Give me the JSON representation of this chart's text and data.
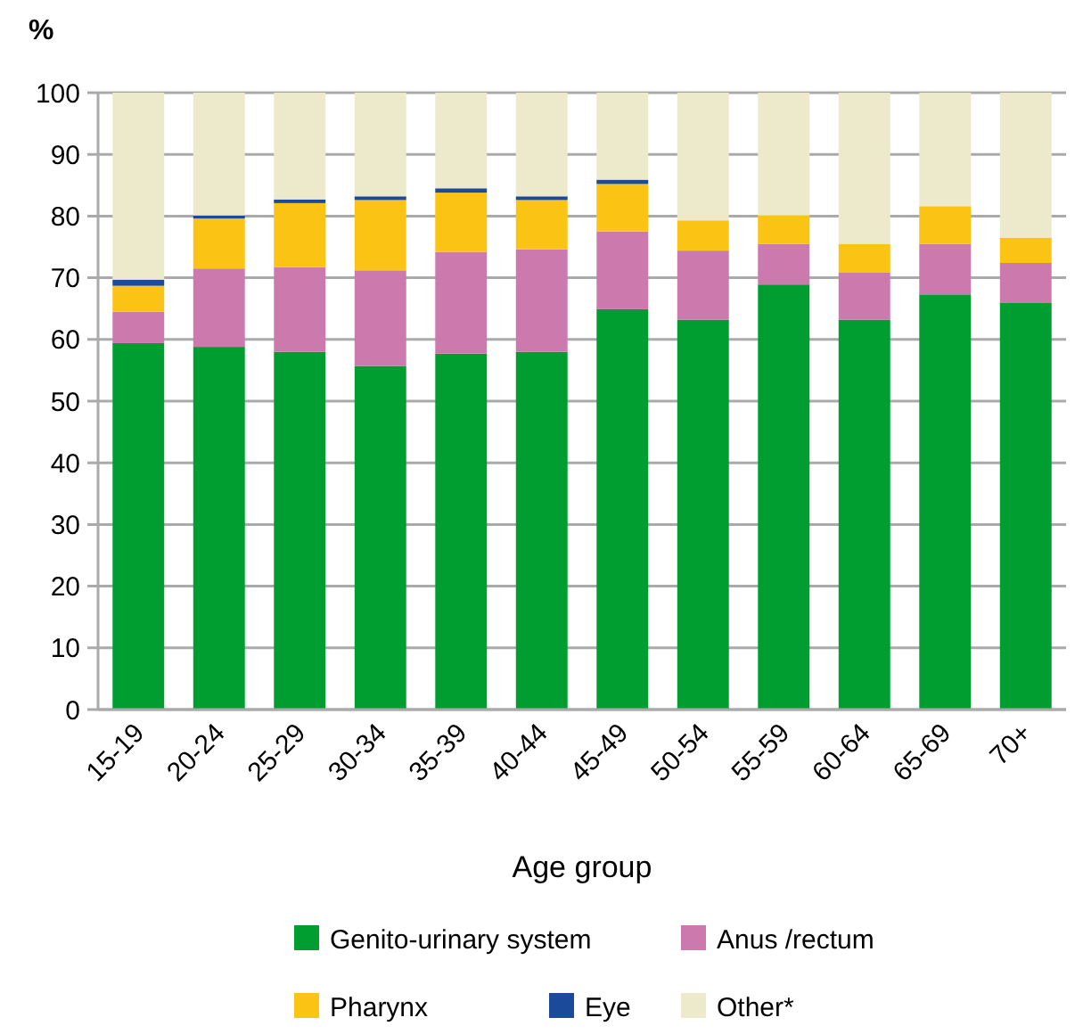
{
  "chart_data": {
    "type": "bar",
    "stacked": true,
    "ylabel": "%",
    "xlabel": "Age group",
    "categories": [
      "15-19",
      "20-24",
      "25-29",
      "30-34",
      "35-39",
      "40-44",
      "45-49",
      "50-54",
      "55-59",
      "60-64",
      "65-69",
      "70+"
    ],
    "series": [
      {
        "name": "Genito-urinary system",
        "color": "#009d31",
        "values": [
          59.4,
          58.8,
          58.0,
          55.7,
          57.7,
          58.0,
          64.9,
          63.2,
          68.9,
          63.2,
          67.3,
          65.9
        ]
      },
      {
        "name": "Anus /rectum",
        "color": "#cc79ae",
        "values": [
          5.1,
          12.7,
          13.7,
          15.5,
          16.5,
          16.6,
          12.6,
          11.2,
          6.6,
          7.7,
          8.2,
          6.5
        ]
      },
      {
        "name": "Pharynx",
        "color": "#fbc314",
        "values": [
          4.2,
          8.1,
          10.4,
          11.4,
          9.6,
          8.0,
          7.7,
          4.9,
          4.6,
          4.6,
          6.1,
          4.1
        ]
      },
      {
        "name": "Eye",
        "color": "#1a4a99",
        "values": [
          1.0,
          0.5,
          0.6,
          0.6,
          0.7,
          0.6,
          0.7,
          0,
          0,
          0,
          0,
          0
        ]
      },
      {
        "name": "Other*",
        "color": "#ede9cb",
        "values": [
          30.3,
          19.9,
          17.3,
          16.8,
          15.5,
          16.8,
          14.1,
          20.7,
          19.9,
          24.5,
          18.4,
          23.5
        ]
      }
    ],
    "ylim": [
      0,
      100
    ],
    "yticks": [
      0,
      10,
      20,
      30,
      40,
      50,
      60,
      70,
      80,
      90,
      100
    ],
    "grid": "y",
    "legend": "bottom"
  }
}
